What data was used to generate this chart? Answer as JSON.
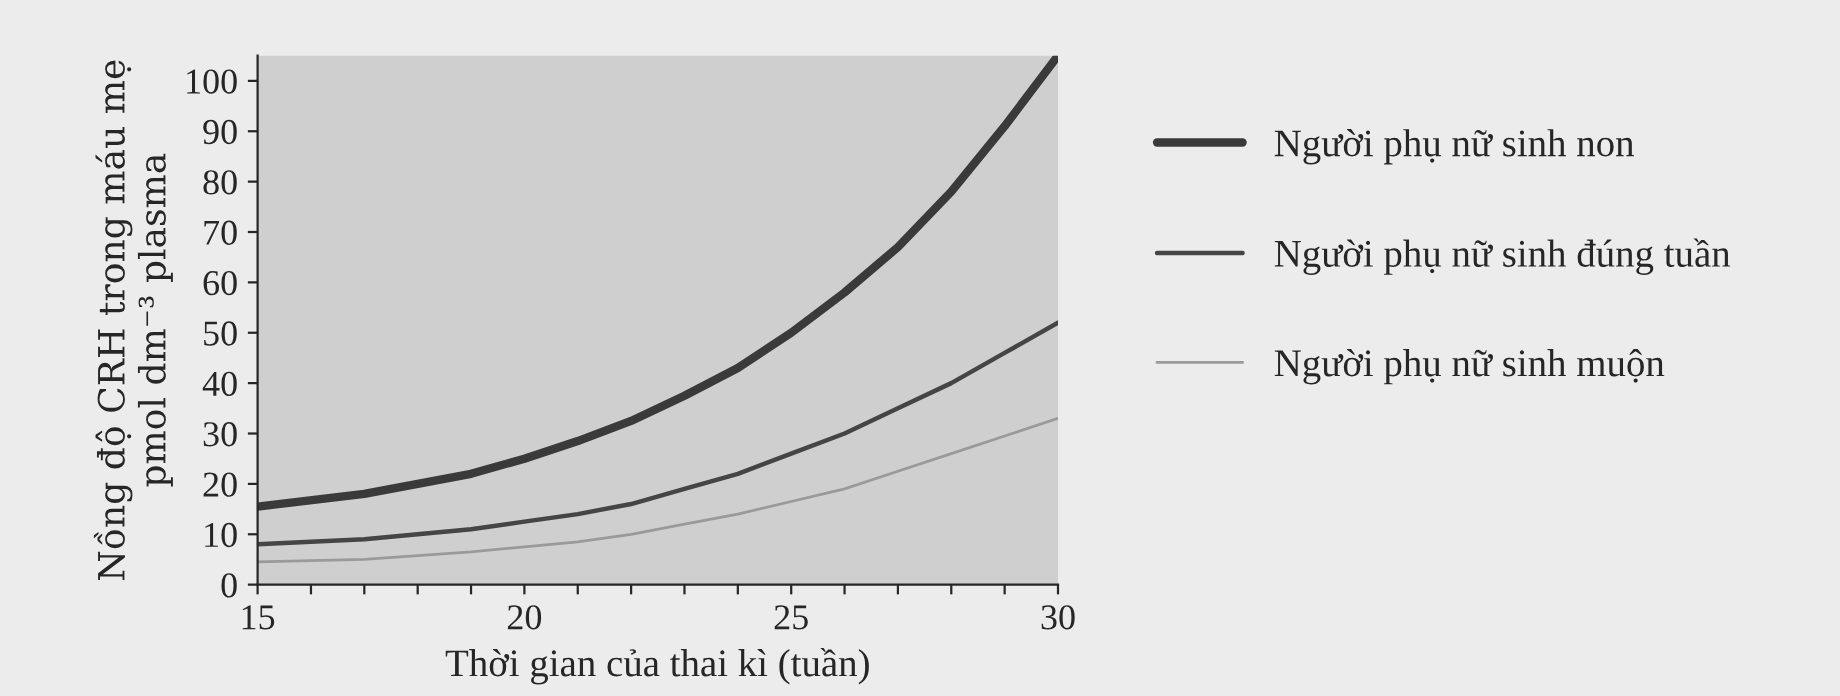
{
  "chart_data": {
    "type": "line",
    "xlabel": "Thời gian của thai kì (tuần)",
    "ylabel": "Nồng độ CRH trong máu mẹ\npmol dm⁻³ plasma",
    "x": [
      15,
      17,
      19,
      20,
      21,
      22,
      23,
      24,
      25,
      26,
      27,
      28,
      29,
      30
    ],
    "series": [
      {
        "name": "Người phụ nữ sinh non",
        "color": "#3a3a3a",
        "values": [
          15.5,
          18,
          22,
          25,
          28.5,
          32.5,
          37.5,
          43,
          50,
          58,
          67,
          78,
          91,
          105
        ]
      },
      {
        "name": "Người phụ nữ sinh đúng tuần",
        "color": "#454545",
        "values": [
          8,
          9,
          11,
          12.5,
          14,
          16,
          19,
          22,
          26,
          30,
          35,
          40,
          46,
          52
        ]
      },
      {
        "name": "Người phụ nữ sinh muộn",
        "color": "#9a9a9a",
        "values": [
          4.5,
          5,
          6.5,
          7.5,
          8.5,
          10,
          12,
          14,
          16.5,
          19,
          22.5,
          26,
          29.5,
          33
        ]
      }
    ],
    "xlim": [
      15,
      30
    ],
    "ylim": [
      0,
      105
    ],
    "xticks": [
      15,
      {
        "value": 16,
        "label": null
      },
      {
        "value": 17,
        "label": null
      },
      {
        "value": 18,
        "label": null
      },
      {
        "value": 19,
        "label": null
      },
      20,
      {
        "value": 21,
        "label": null
      },
      {
        "value": 22,
        "label": null
      },
      {
        "value": 23,
        "label": null
      },
      {
        "value": 24,
        "label": null
      },
      25,
      {
        "value": 26,
        "label": null
      },
      {
        "value": 27,
        "label": null
      },
      {
        "value": 28,
        "label": null
      },
      {
        "value": 29,
        "label": null
      },
      30
    ],
    "yticks": [
      0,
      10,
      20,
      30,
      40,
      50,
      60,
      70,
      80,
      90,
      100
    ],
    "grid": false,
    "legend": "right",
    "marker": "none",
    "line_style": "solid"
  }
}
